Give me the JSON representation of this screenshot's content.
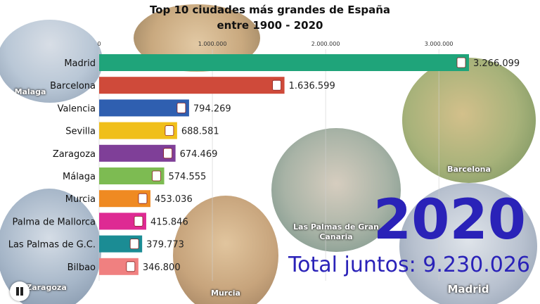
{
  "title": {
    "line1": "Top 10 ciudades más grandes de España",
    "line2": "entre 1900 - 2020"
  },
  "photos": [
    {
      "id": "malaga",
      "caption": "Malaga",
      "color": "#b9c7d6"
    },
    {
      "id": "palma",
      "caption": "",
      "color": "#c9a97f"
    },
    {
      "id": "barcelona",
      "caption": "Barcelona",
      "color": "#a7b27a"
    },
    {
      "id": "las-palmas",
      "caption": "Las Palmas de Gran Canaria",
      "color": "#8fa39a"
    },
    {
      "id": "madrid",
      "caption": "Madrid",
      "color": "#b8c1cf"
    },
    {
      "id": "murcia",
      "caption": "Murcia",
      "color": "#c7a47c"
    },
    {
      "id": "zaragoza",
      "caption": "Zaragoza",
      "color": "#a6b6c8"
    }
  ],
  "chart_data": {
    "type": "bar",
    "orientation": "horizontal",
    "title": "Top 10 ciudades más grandes de España entre 1900 - 2020",
    "categories": [
      "Madrid",
      "Barcelona",
      "Valencia",
      "Sevilla",
      "Zaragoza",
      "Málaga",
      "Murcia",
      "Palma de Mallorca",
      "Las Palmas de G.C.",
      "Bilbao"
    ],
    "values": [
      3266099,
      1636599,
      794269,
      688581,
      674469,
      574555,
      453036,
      415846,
      379773,
      346800
    ],
    "value_labels": [
      "3.266.099",
      "1.636.599",
      "794.269",
      "688.581",
      "674.469",
      "574.555",
      "453.036",
      "415.846",
      "379.773",
      "346.800"
    ],
    "colors": [
      "#1fa47a",
      "#cf4a3a",
      "#2f5fb0",
      "#f0bf1a",
      "#7f3f98",
      "#7dbb52",
      "#ef8a22",
      "#de2a93",
      "#1b8c94",
      "#f08080"
    ],
    "axis_ticks": [
      0,
      1000000,
      2000000,
      3000000
    ],
    "axis_tick_labels": [
      "0",
      "1.000.000",
      "2.000.000",
      "3.000.000"
    ],
    "xlim": [
      0,
      3266099
    ],
    "position": "top",
    "grid": true
  },
  "year": "2020",
  "total_label": "Total juntos: 9.230.026"
}
